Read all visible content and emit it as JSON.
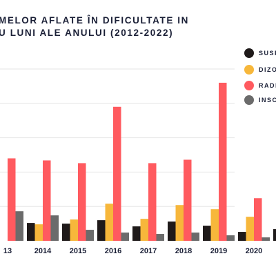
{
  "title_lines": [
    "MELOR AFLATE ÎN DIFICULTATE IN",
    "U LUNI ALE ANULUI (2012-2022)"
  ],
  "legend": [
    {
      "label": "SUSP",
      "color": "#1f1a1a"
    },
    {
      "label": "DIZOI",
      "color": "#f7b73b"
    },
    {
      "label": "RADI",
      "color": "#ff5a5f"
    },
    {
      "label": "INSC",
      "color": "#6b6b6b"
    }
  ],
  "chart_data": {
    "type": "bar",
    "categories": [
      "13",
      "2014",
      "2015",
      "2016",
      "2017",
      "2018",
      "2019",
      "2020",
      ""
    ],
    "series": [
      {
        "name": "SUSP",
        "color": "#1f1a1a",
        "values": [
          null,
          26,
          25,
          30,
          21,
          28,
          22,
          13,
          17
        ]
      },
      {
        "name": "DIZOI",
        "color": "#f7b73b",
        "values": [
          null,
          24,
          31,
          54,
          32,
          52,
          46,
          35,
          null
        ]
      },
      {
        "name": "RADI",
        "color": "#ff5a5f",
        "values": [
          120,
          117,
          113,
          195,
          113,
          118,
          230,
          62,
          null
        ]
      },
      {
        "name": "INSC",
        "color": "#6b6b6b",
        "values": [
          43,
          37,
          16,
          12,
          10,
          12,
          8,
          5,
          null
        ]
      }
    ],
    "ylim": [
      0,
      250
    ],
    "grid": true
  }
}
